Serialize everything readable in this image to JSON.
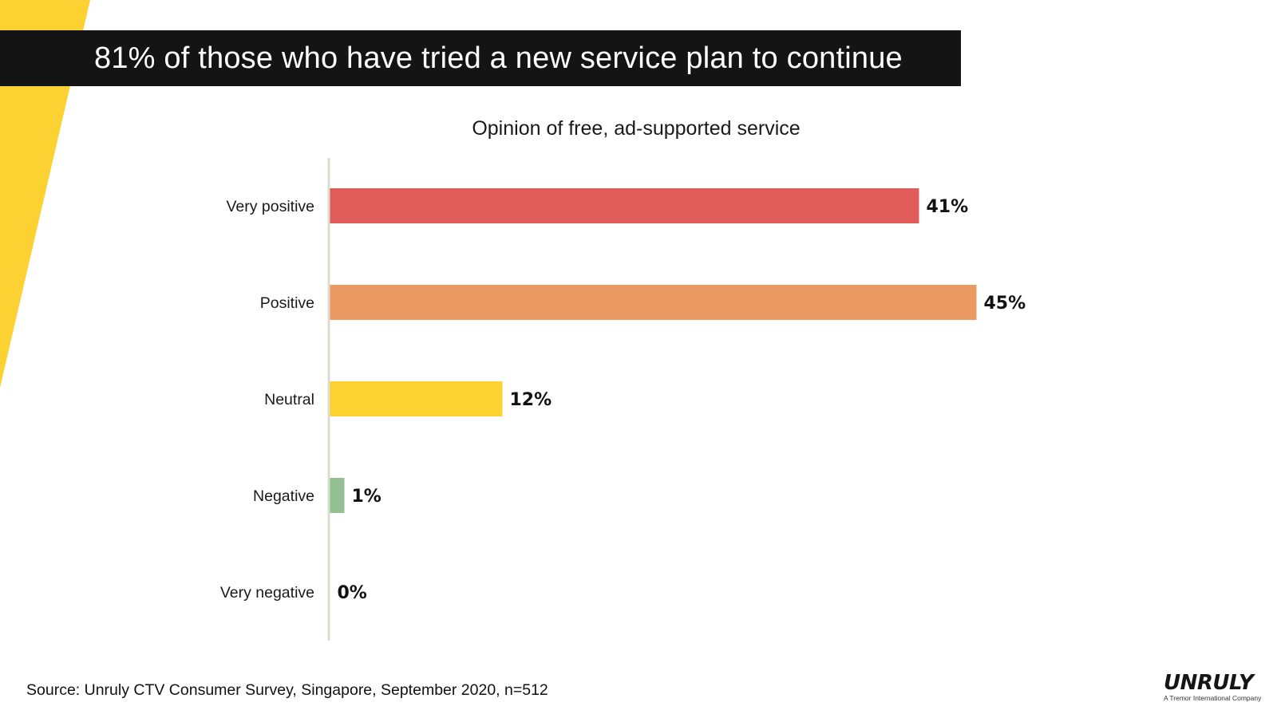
{
  "slide": {
    "headline": "81% of those who have tried a new service plan to continue",
    "source": "Source: Unruly CTV Consumer Survey, Singapore, September 2020, n=512",
    "logo": {
      "name": "UNRULY",
      "tagline": "A Tremor International Company"
    },
    "colors": {
      "accent_yellow": "#FCD232",
      "title_bar": "#141414"
    }
  },
  "chart_data": {
    "type": "bar",
    "orientation": "horizontal",
    "title": "Opinion of free, ad-supported service",
    "categories": [
      "Very positive",
      "Positive",
      "Neutral",
      "Negative",
      "Very negative"
    ],
    "values": [
      41,
      45,
      12,
      1,
      0
    ],
    "value_labels": [
      "41%",
      "45%",
      "12%",
      "1%",
      "0%"
    ],
    "colors": [
      "#E05C5A",
      "#EC9A64",
      "#FCD232",
      "#93BF93",
      "#9A9A9A"
    ],
    "xlabel": "",
    "ylabel": "",
    "xlim": [
      0,
      46
    ],
    "unit": "%",
    "grid": false,
    "legend": "none"
  }
}
